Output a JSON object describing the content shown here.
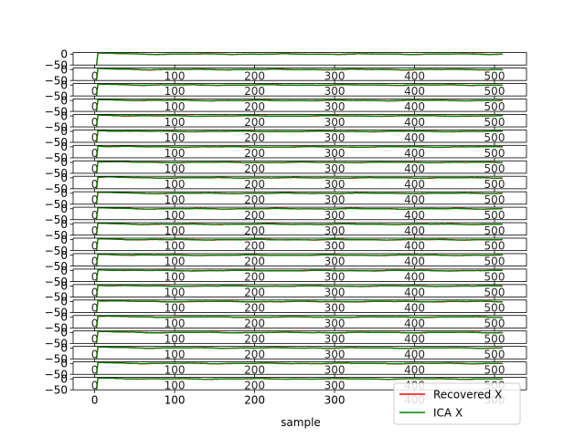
{
  "chart_data": {
    "type": "line",
    "layout": "stacked-panels",
    "panel_count": 22,
    "xlabel": "sample",
    "xlim": [
      -27,
      540
    ],
    "ylim": [
      -50,
      7
    ],
    "x_ticks": [
      0,
      100,
      200,
      300,
      400,
      500
    ],
    "x_tick_labels": [
      "0",
      "100",
      "200",
      "300",
      "400",
      "500"
    ],
    "y_ticks": [
      0,
      -50
    ],
    "y_tick_labels": [
      "0",
      "−50"
    ],
    "grid": false,
    "legend_placement": "lower-right",
    "series": [
      {
        "name": "Recovered X",
        "color": "#ff0000"
      },
      {
        "name": "ICA X",
        "color": "#008000"
      }
    ],
    "n_samples": 512,
    "signal_profile": {
      "start_value": -60,
      "jump_sample": 3,
      "peak_value": 4,
      "settle_value": 0,
      "settle_samples": 60,
      "noise_amplitude": 1.2
    }
  }
}
